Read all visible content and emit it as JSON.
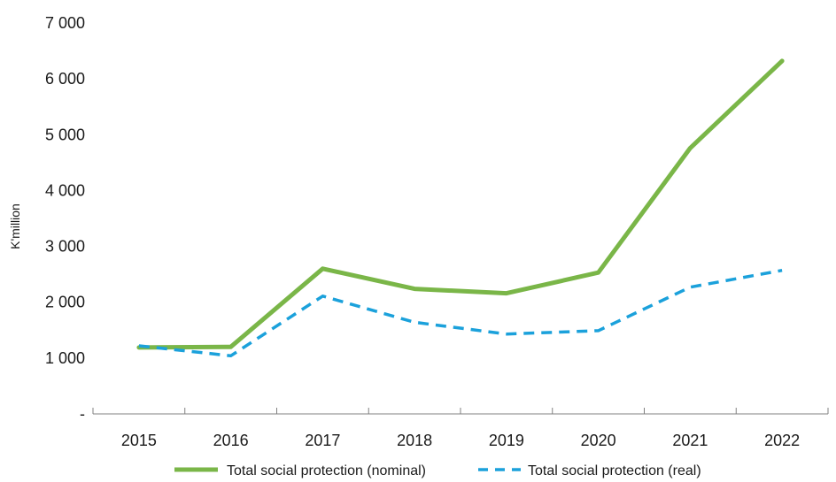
{
  "chart_data": {
    "type": "line",
    "title": "",
    "xlabel": "",
    "ylabel": "K'million",
    "x": [
      "2015",
      "2016",
      "2017",
      "2018",
      "2019",
      "2020",
      "2021",
      "2022"
    ],
    "ylim": [
      0,
      7000
    ],
    "y_ticks": [
      0,
      1000,
      2000,
      3000,
      4000,
      5000,
      6000,
      7000
    ],
    "y_tick_labels": [
      "-",
      "1 000",
      "2 000",
      "3 000",
      "4 000",
      "5 000",
      "6 000",
      "7 000"
    ],
    "grid": false,
    "legend_position": "bottom",
    "series": [
      {
        "name": "Total social protection (nominal)",
        "color": "#7ab648",
        "style": "solid",
        "values": [
          1190,
          1200,
          2600,
          2240,
          2160,
          2530,
          4760,
          6320
        ]
      },
      {
        "name": "Total social protection (real)",
        "color": "#1ba1db",
        "style": "dashed",
        "values": [
          1220,
          1040,
          2110,
          1640,
          1430,
          1490,
          2270,
          2570
        ]
      }
    ]
  }
}
